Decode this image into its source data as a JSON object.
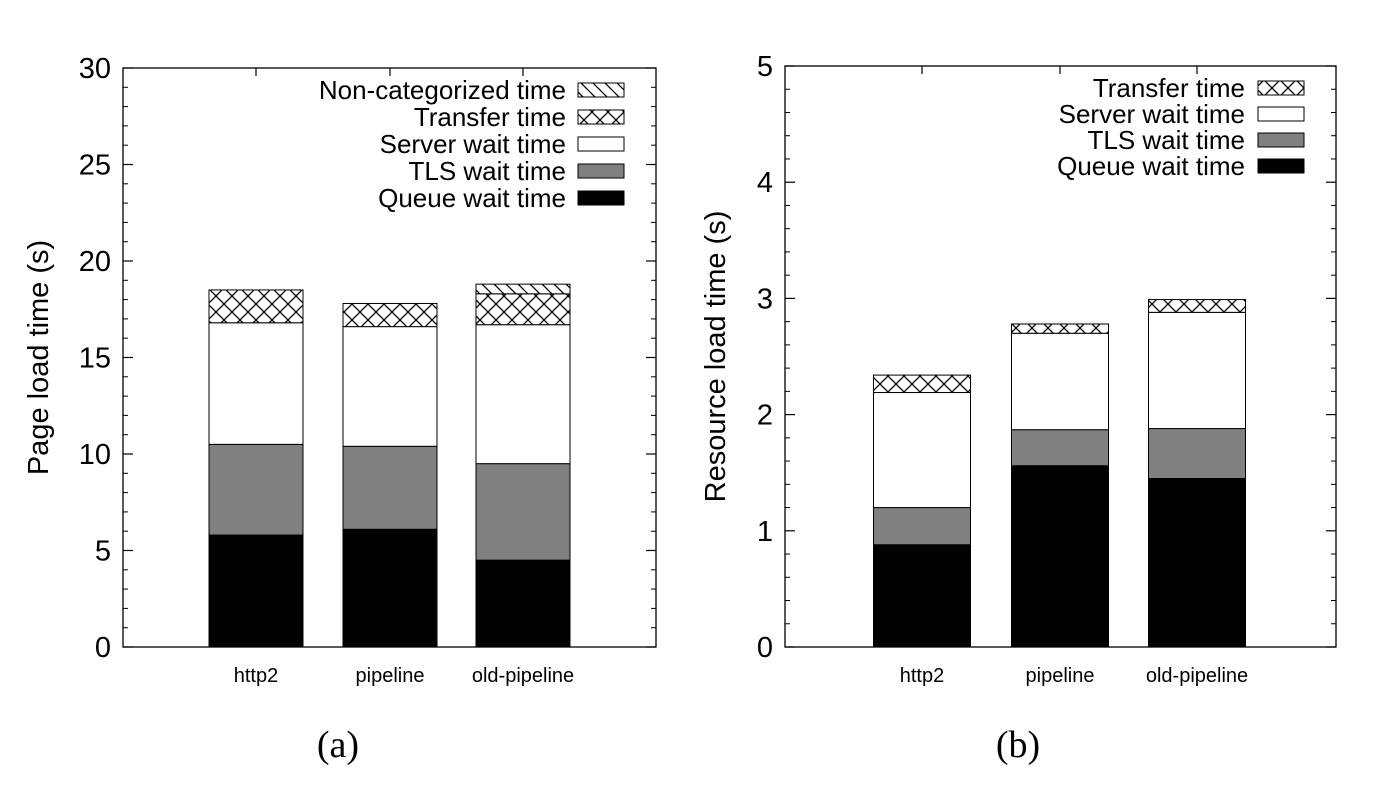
{
  "chart_data": [
    {
      "type": "bar",
      "stacked": true,
      "caption": "(a)",
      "ylabel": "Page load time (s)",
      "ylim": [
        0,
        30
      ],
      "yticks": [
        "0",
        "5",
        "10",
        "15",
        "20",
        "25",
        "30"
      ],
      "categories": [
        "http2",
        "pipeline",
        "old-pipeline"
      ],
      "legend_position": "top-right",
      "series": [
        {
          "name": "Queue wait time",
          "pattern": "solid-black",
          "values": [
            5.8,
            6.1,
            4.5
          ]
        },
        {
          "name": "TLS wait time",
          "pattern": "solid-gray",
          "values": [
            4.7,
            4.3,
            5.0
          ]
        },
        {
          "name": "Server wait time",
          "pattern": "white",
          "values": [
            6.3,
            6.2,
            7.2
          ]
        },
        {
          "name": "Transfer time",
          "pattern": "crosshatch",
          "values": [
            1.7,
            1.2,
            1.6
          ]
        },
        {
          "name": "Non-categorized time",
          "pattern": "diagonal",
          "values": [
            0,
            0,
            0.5
          ]
        }
      ],
      "legend_order": [
        "Non-categorized time",
        "Transfer time",
        "Server wait time",
        "TLS wait time",
        "Queue wait time"
      ]
    },
    {
      "type": "bar",
      "stacked": true,
      "caption": "(b)",
      "ylabel": "Resource load time (s)",
      "ylim": [
        0,
        5
      ],
      "yticks": [
        "0",
        "1",
        "2",
        "3",
        "4",
        "5"
      ],
      "categories": [
        "http2",
        "pipeline",
        "old-pipeline"
      ],
      "legend_position": "top-right",
      "series": [
        {
          "name": "Queue wait time",
          "pattern": "solid-black",
          "values": [
            0.88,
            1.56,
            1.45
          ]
        },
        {
          "name": "TLS wait time",
          "pattern": "solid-gray",
          "values": [
            0.32,
            0.31,
            0.43
          ]
        },
        {
          "name": "Server wait time",
          "pattern": "white",
          "values": [
            0.99,
            0.83,
            1.0
          ]
        },
        {
          "name": "Transfer time",
          "pattern": "crosshatch",
          "values": [
            0.15,
            0.08,
            0.11
          ]
        }
      ],
      "legend_order": [
        "Transfer time",
        "Server wait time",
        "TLS wait time",
        "Queue wait time"
      ]
    }
  ],
  "colors": {
    "queue": "#000000",
    "tls": "#808080",
    "server": "#ffffff",
    "frame": "#000000"
  }
}
